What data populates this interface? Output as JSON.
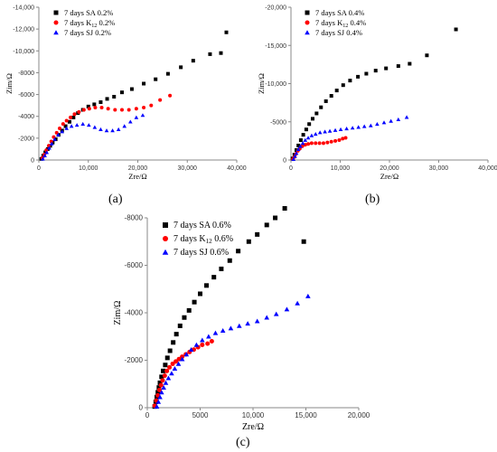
{
  "figure": {
    "panel_labels": [
      "(a)",
      "(b)",
      "(c)"
    ]
  },
  "chart_data": [
    {
      "type": "scatter",
      "panel": "(a)",
      "xlabel": "Zre/Ω",
      "ylabel": "Zim/Ω",
      "xlim": [
        0,
        40000
      ],
      "ylim": [
        0,
        -14000
      ],
      "xticks": [
        0,
        10000,
        20000,
        30000,
        40000
      ],
      "xtick_labels": [
        "0",
        "10,000",
        "20,000",
        "30,000",
        "40,000"
      ],
      "yticks": [
        0,
        -2000,
        -4000,
        -6000,
        -8000,
        -10000,
        -12000,
        -14000
      ],
      "ytick_labels": [
        "0",
        "-2000",
        "-4000",
        "-6000",
        "-8000",
        "-10,000",
        "-12,000",
        "-14,000"
      ],
      "grid": false,
      "legend": "top-left",
      "series": [
        {
          "name": "7 days SA 0.2%",
          "color": "#000000",
          "marker": "square",
          "points": [
            [
              500,
              -100
            ],
            [
              900,
              -400
            ],
            [
              1300,
              -700
            ],
            [
              1800,
              -1000
            ],
            [
              2300,
              -1300
            ],
            [
              2800,
              -1600
            ],
            [
              3400,
              -1900
            ],
            [
              4000,
              -2300
            ],
            [
              4700,
              -2700
            ],
            [
              5400,
              -3100
            ],
            [
              6200,
              -3500
            ],
            [
              7000,
              -3900
            ],
            [
              7900,
              -4300
            ],
            [
              8900,
              -4600
            ],
            [
              10000,
              -4900
            ],
            [
              11200,
              -5100
            ],
            [
              12500,
              -5300
            ],
            [
              13800,
              -5600
            ],
            [
              15200,
              -5800
            ],
            [
              16800,
              -6200
            ],
            [
              18800,
              -6500
            ],
            [
              21200,
              -7000
            ],
            [
              23600,
              -7400
            ],
            [
              26100,
              -7900
            ],
            [
              28700,
              -8500
            ],
            [
              31200,
              -9100
            ],
            [
              34600,
              -9700
            ],
            [
              36800,
              -9800
            ],
            [
              37900,
              -11700
            ]
          ]
        },
        {
          "name": "7 days K12 0.2%",
          "color": "#ff0000",
          "marker": "circle",
          "points": [
            [
              700,
              -200
            ],
            [
              1100,
              -500
            ],
            [
              1500,
              -900
            ],
            [
              2000,
              -1300
            ],
            [
              2500,
              -1700
            ],
            [
              3000,
              -2100
            ],
            [
              3600,
              -2500
            ],
            [
              4200,
              -2900
            ],
            [
              4900,
              -3300
            ],
            [
              5600,
              -3600
            ],
            [
              6400,
              -3900
            ],
            [
              7200,
              -4200
            ],
            [
              8100,
              -4400
            ],
            [
              9100,
              -4600
            ],
            [
              10200,
              -4700
            ],
            [
              11400,
              -4800
            ],
            [
              12700,
              -4800
            ],
            [
              14000,
              -4700
            ],
            [
              15400,
              -4600
            ],
            [
              16800,
              -4600
            ],
            [
              18200,
              -4600
            ],
            [
              19700,
              -4700
            ],
            [
              21200,
              -4800
            ],
            [
              22700,
              -5000
            ],
            [
              24500,
              -5500
            ],
            [
              26500,
              -5900
            ]
          ]
        },
        {
          "name": "7 days SJ 0.2%",
          "color": "#0000ff",
          "marker": "triangle",
          "points": [
            [
              800,
              -100
            ],
            [
              1200,
              -400
            ],
            [
              1600,
              -700
            ],
            [
              2100,
              -1100
            ],
            [
              2600,
              -1500
            ],
            [
              3200,
              -1900
            ],
            [
              3900,
              -2300
            ],
            [
              4700,
              -2600
            ],
            [
              5600,
              -2900
            ],
            [
              6600,
              -3100
            ],
            [
              7700,
              -3200
            ],
            [
              8900,
              -3300
            ],
            [
              10100,
              -3200
            ],
            [
              11300,
              -3000
            ],
            [
              12500,
              -2800
            ],
            [
              13700,
              -2700
            ],
            [
              14900,
              -2700
            ],
            [
              16100,
              -2800
            ],
            [
              17300,
              -3100
            ],
            [
              18500,
              -3500
            ],
            [
              19700,
              -3900
            ],
            [
              21000,
              -4100
            ]
          ]
        }
      ]
    },
    {
      "type": "scatter",
      "panel": "(b)",
      "xlabel": "Zre/Ω",
      "ylabel": "Zim/Ω",
      "xlim": [
        0,
        40000
      ],
      "ylim": [
        0,
        -20000
      ],
      "xticks": [
        0,
        10000,
        20000,
        30000,
        40000
      ],
      "xtick_labels": [
        "0",
        "10,000",
        "20,000",
        "30,000",
        "40,000"
      ],
      "yticks": [
        0,
        -5000,
        -10000,
        -15000,
        -20000
      ],
      "ytick_labels": [
        "0",
        "-5000",
        "-10,000",
        "-15,000",
        "-20,000"
      ],
      "grid": false,
      "legend": "top-left",
      "series": [
        {
          "name": "7 days SA 0.4%",
          "color": "#000000",
          "marker": "square",
          "points": [
            [
              300,
              -200
            ],
            [
              700,
              -700
            ],
            [
              1100,
              -1300
            ],
            [
              1500,
              -1900
            ],
            [
              2000,
              -2600
            ],
            [
              2500,
              -3300
            ],
            [
              3100,
              -4000
            ],
            [
              3700,
              -4700
            ],
            [
              4400,
              -5400
            ],
            [
              5200,
              -6100
            ],
            [
              6100,
              -6900
            ],
            [
              7100,
              -7700
            ],
            [
              8200,
              -8400
            ],
            [
              9300,
              -9100
            ],
            [
              10600,
              -9800
            ],
            [
              12000,
              -10400
            ],
            [
              13600,
              -10900
            ],
            [
              15300,
              -11300
            ],
            [
              17200,
              -11700
            ],
            [
              19300,
              -12000
            ],
            [
              21800,
              -12300
            ],
            [
              24100,
              -12600
            ],
            [
              27600,
              -13700
            ],
            [
              33500,
              -17100
            ]
          ]
        },
        {
          "name": "7 days K12 0.4%",
          "color": "#ff0000",
          "marker": "circle",
          "points": [
            [
              400,
              -100
            ],
            [
              700,
              -400
            ],
            [
              1000,
              -800
            ],
            [
              1400,
              -1200
            ],
            [
              1800,
              -1500
            ],
            [
              2300,
              -1800
            ],
            [
              2900,
              -2000
            ],
            [
              3500,
              -2100
            ],
            [
              4200,
              -2200
            ],
            [
              5000,
              -2200
            ],
            [
              5800,
              -2200
            ],
            [
              6600,
              -2200
            ],
            [
              7400,
              -2300
            ],
            [
              8200,
              -2400
            ],
            [
              9000,
              -2500
            ],
            [
              9800,
              -2600
            ],
            [
              10500,
              -2800
            ],
            [
              11100,
              -2900
            ]
          ]
        },
        {
          "name": "7 days SJ 0.4%",
          "color": "#0000ff",
          "marker": "triangle",
          "points": [
            [
              500,
              -100
            ],
            [
              800,
              -500
            ],
            [
              1100,
              -900
            ],
            [
              1500,
              -1400
            ],
            [
              1900,
              -1800
            ],
            [
              2400,
              -2200
            ],
            [
              2900,
              -2600
            ],
            [
              3500,
              -2900
            ],
            [
              4200,
              -3200
            ],
            [
              5000,
              -3400
            ],
            [
              5900,
              -3600
            ],
            [
              6900,
              -3700
            ],
            [
              7900,
              -3800
            ],
            [
              9000,
              -3900
            ],
            [
              10100,
              -4000
            ],
            [
              11300,
              -4100
            ],
            [
              12500,
              -4200
            ],
            [
              13700,
              -4300
            ],
            [
              14900,
              -4400
            ],
            [
              16200,
              -4500
            ],
            [
              17500,
              -4700
            ],
            [
              18900,
              -4900
            ],
            [
              20300,
              -5100
            ],
            [
              21800,
              -5300
            ],
            [
              23500,
              -5600
            ]
          ]
        }
      ]
    },
    {
      "type": "scatter",
      "panel": "(c)",
      "xlabel": "Zre/Ω",
      "ylabel": "Zim/Ω",
      "xlim": [
        0,
        20000
      ],
      "ylim": [
        0,
        -8000
      ],
      "xticks": [
        0,
        5000,
        10000,
        15000,
        20000
      ],
      "xtick_labels": [
        "0",
        "5000",
        "10,000",
        "15,000",
        "20,000"
      ],
      "yticks": [
        0,
        -2000,
        -4000,
        -6000,
        -8000
      ],
      "ytick_labels": [
        "0",
        "-2000",
        "-4000",
        "-6000",
        "-8000"
      ],
      "grid": false,
      "legend": "top-left",
      "series": [
        {
          "name": "7 days SA 0.6%",
          "color": "#000000",
          "marker": "square",
          "points": [
            [
              700,
              -50
            ],
            [
              800,
              -250
            ],
            [
              900,
              -450
            ],
            [
              1000,
              -650
            ],
            [
              1100,
              -850
            ],
            [
              1200,
              -1050
            ],
            [
              1350,
              -1300
            ],
            [
              1500,
              -1550
            ],
            [
              1700,
              -1800
            ],
            [
              1900,
              -2100
            ],
            [
              2150,
              -2400
            ],
            [
              2450,
              -2750
            ],
            [
              2750,
              -3100
            ],
            [
              3100,
              -3450
            ],
            [
              3500,
              -3800
            ],
            [
              3950,
              -4100
            ],
            [
              4450,
              -4450
            ],
            [
              5000,
              -4800
            ],
            [
              5600,
              -5150
            ],
            [
              6300,
              -5500
            ],
            [
              7000,
              -5850
            ],
            [
              7800,
              -6200
            ],
            [
              8600,
              -6600
            ],
            [
              9600,
              -7000
            ],
            [
              10400,
              -7300
            ],
            [
              11300,
              -7700
            ],
            [
              12100,
              -8000
            ],
            [
              13000,
              -8400
            ],
            [
              14800,
              -7000
            ]
          ]
        },
        {
          "name": "7 days K12 0.6%",
          "color": "#ff0000",
          "marker": "circle",
          "points": [
            [
              700,
              -80
            ],
            [
              850,
              -300
            ],
            [
              1000,
              -520
            ],
            [
              1150,
              -750
            ],
            [
              1300,
              -950
            ],
            [
              1450,
              -1150
            ],
            [
              1650,
              -1350
            ],
            [
              1850,
              -1550
            ],
            [
              2100,
              -1700
            ],
            [
              2400,
              -1850
            ],
            [
              2700,
              -1950
            ],
            [
              3000,
              -2050
            ],
            [
              3300,
              -2150
            ],
            [
              3650,
              -2250
            ],
            [
              4000,
              -2350
            ],
            [
              4400,
              -2450
            ],
            [
              4800,
              -2550
            ],
            [
              5200,
              -2650
            ],
            [
              5700,
              -2700
            ],
            [
              6100,
              -2800
            ]
          ]
        },
        {
          "name": "7 days SJ 0.6%",
          "color": "#0000ff",
          "marker": "triangle",
          "points": [
            [
              900,
              -50
            ],
            [
              1050,
              -250
            ],
            [
              1200,
              -450
            ],
            [
              1350,
              -650
            ],
            [
              1550,
              -850
            ],
            [
              1750,
              -1050
            ],
            [
              2000,
              -1250
            ],
            [
              2300,
              -1450
            ],
            [
              2600,
              -1650
            ],
            [
              2950,
              -1850
            ],
            [
              3300,
              -2050
            ],
            [
              3700,
              -2250
            ],
            [
              4150,
              -2450
            ],
            [
              4650,
              -2650
            ],
            [
              5200,
              -2850
            ],
            [
              5800,
              -3000
            ],
            [
              6450,
              -3150
            ],
            [
              7150,
              -3250
            ],
            [
              7900,
              -3350
            ],
            [
              8700,
              -3450
            ],
            [
              9500,
              -3550
            ],
            [
              10400,
              -3650
            ],
            [
              11300,
              -3800
            ],
            [
              12200,
              -3950
            ],
            [
              13200,
              -4150
            ],
            [
              14200,
              -4400
            ],
            [
              15200,
              -4700
            ]
          ]
        }
      ]
    }
  ]
}
